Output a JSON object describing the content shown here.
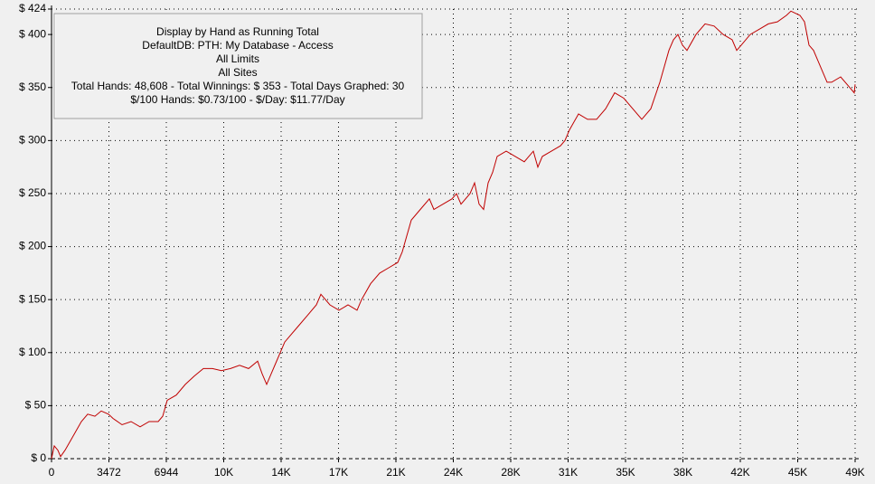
{
  "chart_data": {
    "type": "line",
    "annotations": [
      "Display by Hand as Running Total",
      "DefaultDB: PTH: My Database - Access",
      "All Limits",
      "All Sites",
      "Total Hands: 48,608 - Total Winnings: $ 353 - Total Days Graphed: 30",
      "$/100 Hands: $0.73/100 - $/Day: $11.77/Day"
    ],
    "x": [
      0,
      164,
      383,
      547,
      820,
      1258,
      1805,
      2187,
      2625,
      3008,
      3445,
      3718,
      4265,
      4812,
      5359,
      5906,
      6452,
      6726,
      6999,
      7545,
      8092,
      8639,
      9186,
      9733,
      10280,
      10826,
      11373,
      11920,
      12466,
      12740,
      13013,
      13287,
      13560,
      13834,
      14107,
      14381,
      14927,
      15474,
      16020,
      16294,
      16841,
      17387,
      17934,
      18481,
      18754,
      19301,
      19847,
      20394,
      20941,
      21215,
      21488,
      21762,
      22309,
      22855,
      23129,
      23676,
      24222,
      24495,
      24769,
      25316,
      25589,
      25863,
      26136,
      26410,
      26683,
      26957,
      27504,
      28050,
      28597,
      29144,
      29417,
      29690,
      30237,
      30784,
      31057,
      31330,
      31877,
      32424,
      32970,
      33517,
      34064,
      34611,
      35157,
      35704,
      36251,
      36798,
      37344,
      37618,
      37891,
      38165,
      38438,
      38985,
      39531,
      40078,
      40625,
      41172,
      41445,
      41719,
      42265,
      42812,
      43359,
      43906,
      44452,
      44726,
      44999,
      45273,
      45546,
      45820,
      46093,
      46367,
      46640,
      46913,
      47187,
      47734,
      48280,
      48554,
      48608
    ],
    "series": [
      {
        "name": "Running Total",
        "color": "#c00000",
        "values": [
          0,
          12,
          8,
          2,
          8,
          20,
          35,
          42,
          40,
          45,
          42,
          38,
          32,
          35,
          30,
          35,
          35,
          40,
          55,
          60,
          70,
          78,
          85,
          85,
          83,
          85,
          88,
          85,
          92,
          80,
          70,
          80,
          90,
          100,
          110,
          115,
          125,
          135,
          145,
          155,
          145,
          140,
          145,
          140,
          150,
          165,
          175,
          180,
          185,
          195,
          210,
          225,
          235,
          245,
          235,
          240,
          245,
          250,
          240,
          250,
          260,
          240,
          235,
          260,
          270,
          285,
          290,
          285,
          280,
          290,
          275,
          285,
          290,
          295,
          300,
          310,
          325,
          320,
          320,
          330,
          345,
          340,
          330,
          320,
          330,
          355,
          385,
          395,
          400,
          390,
          385,
          400,
          410,
          408,
          400,
          395,
          385,
          390,
          400,
          405,
          410,
          412,
          418,
          422,
          420,
          418,
          412,
          390,
          385,
          375,
          365,
          355,
          355,
          360,
          350,
          345,
          353
        ]
      }
    ],
    "xlim": [
      0,
      48608
    ],
    "ylim": [
      0,
      424
    ],
    "xticks": [
      0,
      3472,
      6944,
      {
        "value": 10416,
        "label": "10K"
      },
      {
        "value": 13888,
        "label": "14K"
      },
      {
        "value": 17360,
        "label": "17K"
      },
      {
        "value": 20832,
        "label": "21K"
      },
      {
        "value": 24304,
        "label": "24K"
      },
      {
        "value": 27776,
        "label": "28K"
      },
      {
        "value": 31248,
        "label": "31K"
      },
      {
        "value": 34720,
        "label": "35K"
      },
      {
        "value": 38192,
        "label": "38K"
      },
      {
        "value": 41664,
        "label": "42K"
      },
      {
        "value": 45136,
        "label": "45K"
      },
      {
        "value": 48608,
        "label": "49K"
      }
    ],
    "yticks": [
      {
        "value": 0,
        "label": "$ 0"
      },
      {
        "value": 50,
        "label": "$ 50"
      },
      {
        "value": 100,
        "label": "$ 100"
      },
      {
        "value": 150,
        "label": "$ 150"
      },
      {
        "value": 200,
        "label": "$ 200"
      },
      {
        "value": 250,
        "label": "$ 250"
      },
      {
        "value": 300,
        "label": "$ 300"
      },
      {
        "value": 350,
        "label": "$ 350"
      },
      {
        "value": 400,
        "label": "$ 400"
      },
      {
        "value": 424,
        "label": "$ 424"
      }
    ],
    "grid": true
  }
}
